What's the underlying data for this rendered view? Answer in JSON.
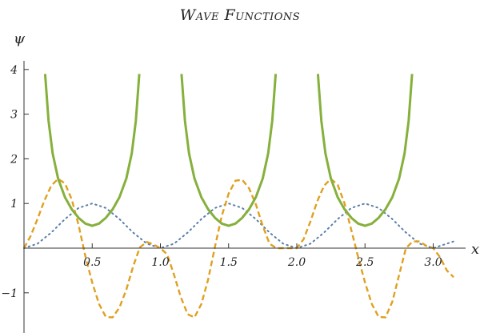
{
  "chart_data": {
    "type": "line",
    "title": "Wave Functions",
    "xlabel": "x",
    "ylabel": "ψ",
    "xlim": [
      0,
      3.2
    ],
    "ylim": [
      -1.8,
      4.15
    ],
    "x_ticks": [
      0.5,
      1.0,
      1.5,
      2.0,
      2.5,
      3.0
    ],
    "x_tick_labels": [
      "0.5",
      "1.0",
      "1.5",
      "2.0",
      "2.5",
      "3.0"
    ],
    "y_ticks": [
      -1,
      1,
      2,
      3,
      4
    ],
    "y_tick_labels": [
      "−1",
      "1",
      "2",
      "3",
      "4"
    ],
    "grid": false,
    "series": [
      {
        "style": "dotted",
        "color": "#5b7fa6",
        "x": [
          0,
          0.1,
          0.2,
          0.3,
          0.4,
          0.5,
          0.6,
          0.7,
          0.8,
          0.9,
          1.0,
          1.1,
          1.2,
          1.3,
          1.4,
          1.5,
          1.6,
          1.7,
          1.8,
          1.9,
          2.0,
          2.1,
          2.2,
          2.3,
          2.4,
          2.5,
          2.6,
          2.7,
          2.8,
          2.9,
          3.0,
          3.1,
          3.15
        ],
        "y": [
          0,
          0.1,
          0.35,
          0.65,
          0.9,
          1.0,
          0.9,
          0.65,
          0.35,
          0.1,
          0,
          0.1,
          0.35,
          0.65,
          0.9,
          1.0,
          0.9,
          0.65,
          0.35,
          0.1,
          0,
          0.1,
          0.35,
          0.65,
          0.9,
          1.0,
          0.9,
          0.65,
          0.35,
          0.1,
          0,
          0.1,
          0.15
        ]
      },
      {
        "style": "dashed",
        "color": "#e0a020",
        "x": [
          0,
          0.05,
          0.1,
          0.15,
          0.2,
          0.25,
          0.3,
          0.35,
          0.4,
          0.45,
          0.5,
          0.55,
          0.6,
          0.65,
          0.7,
          0.75,
          0.8,
          0.85,
          0.9,
          0.95,
          1.0,
          1.05,
          1.1,
          1.15,
          1.2,
          1.25,
          1.3,
          1.35,
          1.4,
          1.45,
          1.5,
          1.55,
          1.6,
          1.65,
          1.7,
          1.75,
          1.8,
          1.85,
          1.9,
          1.95,
          2.0,
          2.05,
          2.1,
          2.15,
          2.2,
          2.25,
          2.3,
          2.35,
          2.4,
          2.45,
          2.5,
          2.55,
          2.6,
          2.65,
          2.7,
          2.75,
          2.8,
          2.85,
          2.9,
          2.95,
          3.0,
          3.05,
          3.1,
          3.15
        ],
        "y": [
          0,
          0.28,
          0.66,
          1.07,
          1.4,
          1.55,
          1.45,
          1.09,
          0.52,
          -0.18,
          -0.77,
          -1.25,
          -1.54,
          -1.55,
          -1.33,
          -0.93,
          -0.41,
          0.02,
          0.14,
          0.08,
          0,
          -0.14,
          -0.6,
          -1.1,
          -1.48,
          -1.55,
          -1.25,
          -0.7,
          0.03,
          0.72,
          1.22,
          1.51,
          1.53,
          1.34,
          0.98,
          0.5,
          0.1,
          0,
          0,
          0,
          0,
          0.2,
          0.6,
          1.05,
          1.4,
          1.55,
          1.42,
          1.0,
          0.4,
          -0.2,
          -0.77,
          -1.25,
          -1.54,
          -1.55,
          -1.2,
          -0.6,
          0,
          0.15,
          0.15,
          0.05,
          0,
          -0.2,
          -0.5,
          -0.65
        ]
      },
      {
        "style": "solid",
        "color": "#86b03c",
        "segments": [
          {
            "x": [
              0.155,
              0.18,
              0.21,
              0.25,
              0.3,
              0.35,
              0.4,
              0.45,
              0.5,
              0.55,
              0.6,
              0.65,
              0.7,
              0.75,
              0.79,
              0.82,
              0.845
            ],
            "y": [
              3.9,
              2.85,
              2.12,
              1.56,
              1.14,
              0.87,
              0.68,
              0.55,
              0.5,
              0.55,
              0.68,
              0.87,
              1.14,
              1.56,
              2.12,
              2.85,
              3.9
            ]
          },
          {
            "x": [
              1.155,
              1.18,
              1.21,
              1.25,
              1.3,
              1.35,
              1.4,
              1.45,
              1.5,
              1.55,
              1.6,
              1.65,
              1.7,
              1.75,
              1.79,
              1.82,
              1.845
            ],
            "y": [
              3.9,
              2.85,
              2.12,
              1.56,
              1.14,
              0.87,
              0.68,
              0.55,
              0.5,
              0.55,
              0.68,
              0.87,
              1.14,
              1.56,
              2.12,
              2.85,
              3.9
            ]
          },
          {
            "x": [
              2.155,
              2.18,
              2.21,
              2.25,
              2.3,
              2.35,
              2.4,
              2.45,
              2.5,
              2.55,
              2.6,
              2.65,
              2.7,
              2.75,
              2.79,
              2.82,
              2.845
            ],
            "y": [
              3.9,
              2.85,
              2.12,
              1.56,
              1.14,
              0.87,
              0.68,
              0.55,
              0.5,
              0.55,
              0.68,
              0.87,
              1.14,
              1.56,
              2.12,
              2.85,
              3.9
            ]
          }
        ]
      }
    ]
  }
}
